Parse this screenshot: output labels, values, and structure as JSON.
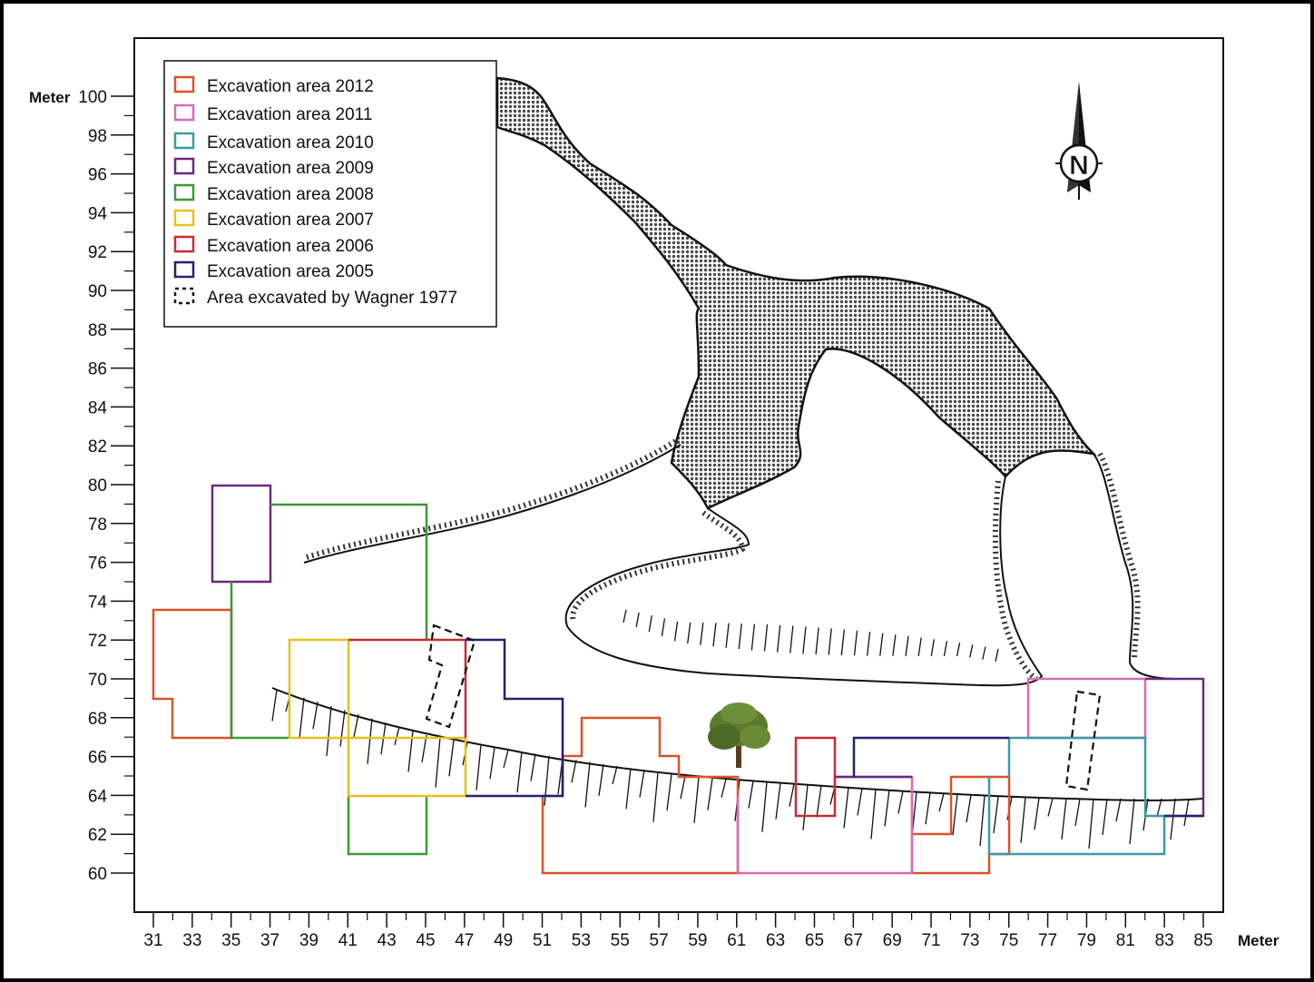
{
  "axes": {
    "y_unit": "Meter",
    "x_unit": "Meter",
    "y_ticks": [
      "100",
      "98",
      "96",
      "94",
      "92",
      "90",
      "88",
      "86",
      "84",
      "82",
      "80",
      "78",
      "76",
      "74",
      "72",
      "70",
      "68",
      "66",
      "64",
      "62",
      "60"
    ],
    "x_ticks": [
      "31",
      "33",
      "35",
      "37",
      "39",
      "41",
      "43",
      "45",
      "47",
      "49",
      "51",
      "53",
      "55",
      "57",
      "59",
      "61",
      "63",
      "65",
      "67",
      "69",
      "71",
      "73",
      "75",
      "77",
      "79",
      "81",
      "83",
      "85"
    ]
  },
  "legend": [
    {
      "label": "Excavation area 2012",
      "color": "#d9532a",
      "dashed": false
    },
    {
      "label": "Excavation area 2011",
      "color": "#d76bb9",
      "dashed": false
    },
    {
      "label": "Excavation area 2010",
      "color": "#3b9aa6",
      "dashed": false
    },
    {
      "label": "Excavation area 2009",
      "color": "#6a2a7e",
      "dashed": false
    },
    {
      "label": "Excavation area 2008",
      "color": "#3a9a34",
      "dashed": false
    },
    {
      "label": "Excavation area 2007",
      "color": "#e6c21a",
      "dashed": false
    },
    {
      "label": "Excavation area 2006",
      "color": "#c62a36",
      "dashed": false
    },
    {
      "label": "Excavation area 2005",
      "color": "#23236f",
      "dashed": false
    },
    {
      "label": "Area excavated by Wagner 1977",
      "color": "#111111",
      "dashed": true
    }
  ],
  "north_arrow": {
    "letter": "N",
    "icon": "north-arrow-icon"
  },
  "colors": {
    "cave_fill": "#6b6b6b",
    "outline": "#111111",
    "tree_foliage": "#5d7a2e",
    "tree_trunk": "#5a3c1e"
  }
}
